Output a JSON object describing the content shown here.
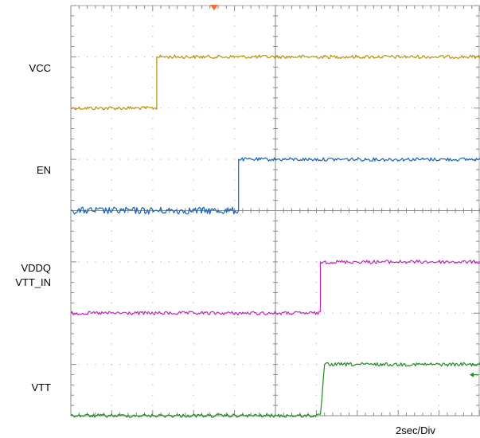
{
  "chart_data": {
    "type": "line",
    "title": "",
    "xlabel": "",
    "ylabel": "",
    "time_scale": "2sec/Div",
    "x_unit": "divisions",
    "xlim": [
      0,
      10
    ],
    "ylim": [
      0,
      8
    ],
    "grid": true,
    "legend": "none",
    "series": [
      {
        "name": "VCC",
        "labels": [
          "VCC"
        ],
        "color": "#B8920A",
        "low_level": 6.0,
        "high_level": 7.0,
        "x": [
          0,
          2.1,
          2.1,
          10
        ],
        "y": [
          6.0,
          6.0,
          7.0,
          7.0
        ]
      },
      {
        "name": "EN",
        "labels": [
          "EN"
        ],
        "color": "#1565C0",
        "low_level": 4.0,
        "high_level": 5.0,
        "x": [
          0,
          4.1,
          4.1,
          10
        ],
        "y": [
          4.0,
          4.0,
          5.0,
          5.0
        ]
      },
      {
        "name": "VDDQ VTT_IN",
        "labels": [
          "VDDQ",
          "VTT_IN"
        ],
        "color": "#C025C0",
        "low_level": 2.0,
        "high_level": 3.0,
        "x": [
          0,
          6.1,
          6.1,
          10
        ],
        "y": [
          2.0,
          2.0,
          3.0,
          3.0
        ]
      },
      {
        "name": "VTT",
        "labels": [
          "VTT"
        ],
        "color": "#1E8C1E",
        "low_level": 0.0,
        "high_level": 1.0,
        "x": [
          0,
          6.1,
          6.2,
          10
        ],
        "y": [
          0.0,
          0.0,
          1.0,
          1.0
        ]
      }
    ],
    "markers": {
      "trigger_color": "#FF6A33",
      "vtt_ref_arrow_color": "#1E8C1E"
    }
  }
}
